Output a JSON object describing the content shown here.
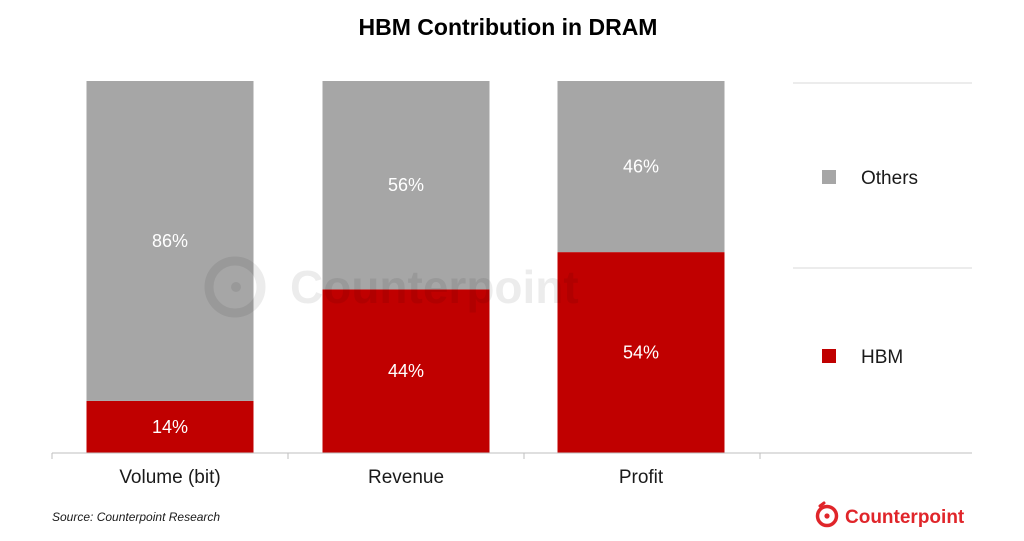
{
  "chart_data": {
    "type": "bar",
    "stacked": true,
    "title": "HBM Contribution in DRAM",
    "categories": [
      "Volume (bit)",
      "Revenue",
      "Profit"
    ],
    "series": [
      {
        "name": "HBM",
        "values": [
          14,
          44,
          54
        ],
        "labels": [
          "14%",
          "44%",
          "54%"
        ],
        "color": "#c00000"
      },
      {
        "name": "Others",
        "values": [
          86,
          56,
          46
        ],
        "labels": [
          "86%",
          "56%",
          "46%"
        ],
        "color": "#a6a6a6"
      }
    ],
    "ylim": [
      0,
      100
    ],
    "legend_position": "right",
    "legend_order": [
      "Others",
      "HBM"
    ],
    "grid": false
  },
  "source": "Source: Counterpoint Research",
  "logo": {
    "text": "Counterpoint",
    "color": "#e0252a"
  },
  "watermark": {
    "text": "Counterpoint",
    "color": "#000000"
  }
}
